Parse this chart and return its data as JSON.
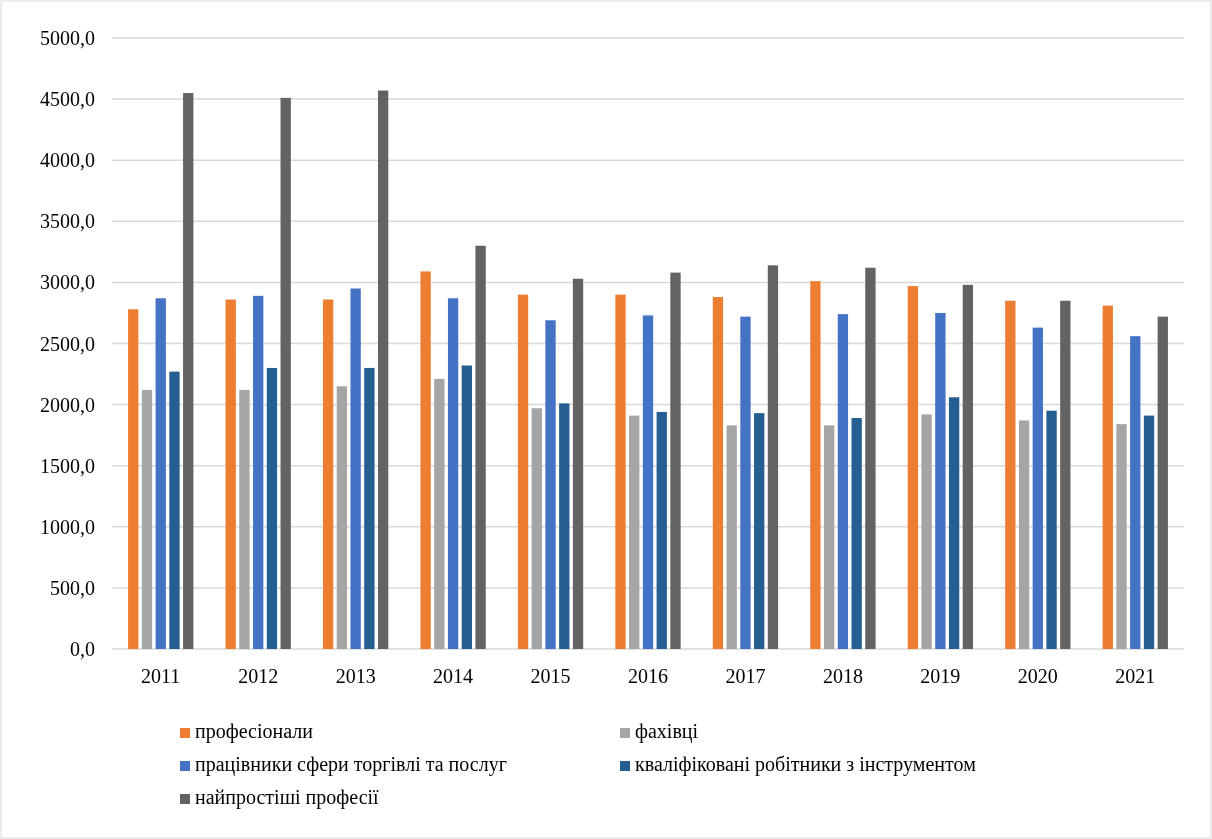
{
  "chart_data": {
    "type": "bar",
    "categories": [
      "2011",
      "2012",
      "2013",
      "2014",
      "2015",
      "2016",
      "2017",
      "2018",
      "2019",
      "2020",
      "2021"
    ],
    "series": [
      {
        "name": "професіонали",
        "color": "#ed7d31",
        "values": [
          2780,
          2860,
          2860,
          3090,
          2900,
          2900,
          2880,
          3010,
          2970,
          2850,
          2810
        ]
      },
      {
        "name": "фахівці",
        "color": "#a5a5a5",
        "values": [
          2120,
          2120,
          2150,
          2210,
          1970,
          1910,
          1830,
          1830,
          1920,
          1870,
          1840
        ]
      },
      {
        "name": "працівники сфери торгівлі та послуг",
        "color": "#4472c4",
        "values": [
          2870,
          2890,
          2950,
          2870,
          2690,
          2730,
          2720,
          2740,
          2750,
          2630,
          2560
        ]
      },
      {
        "name": "кваліфіковані робітники з інструментом",
        "color": "#255e91",
        "values": [
          2270,
          2300,
          2300,
          2320,
          2010,
          1940,
          1930,
          1890,
          2060,
          1950,
          1910
        ]
      },
      {
        "name": "найпростіші професії",
        "color": "#636363",
        "values": [
          4550,
          4510,
          4570,
          3300,
          3030,
          3080,
          3140,
          3120,
          2980,
          2850,
          2720
        ]
      }
    ],
    "ylim": [
      0,
      5000
    ],
    "yticks": [
      {
        "value": 0,
        "label": "0,0"
      },
      {
        "value": 500,
        "label": "500,0"
      },
      {
        "value": 1000,
        "label": "1000,0"
      },
      {
        "value": 1500,
        "label": "1500,0"
      },
      {
        "value": 2000,
        "label": "2000,0"
      },
      {
        "value": 2500,
        "label": "2500,0"
      },
      {
        "value": 3000,
        "label": "3000,0"
      },
      {
        "value": 3500,
        "label": "3500,0"
      },
      {
        "value": 4000,
        "label": "4000,0"
      },
      {
        "value": 4500,
        "label": "4500,0"
      },
      {
        "value": 5000,
        "label": "5000,0"
      }
    ],
    "grid": "y",
    "legend": "bottom"
  }
}
